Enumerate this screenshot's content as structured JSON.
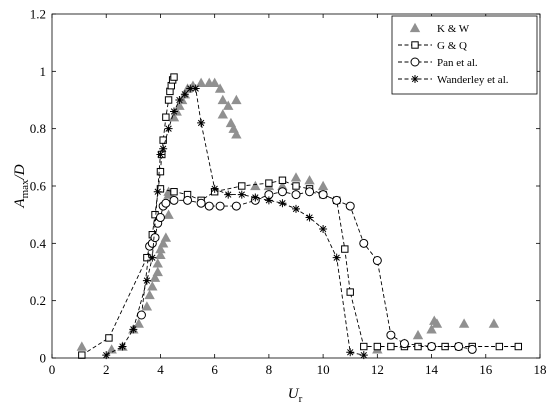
{
  "chart_data": {
    "type": "scatter",
    "xlabel": {
      "main": "U",
      "sub": "r"
    },
    "ylabel": {
      "main": "A",
      "sub": "max",
      "suffix": "/D"
    },
    "xlim": [
      0,
      18
    ],
    "ylim": [
      0,
      1.2
    ],
    "xticks": [
      0,
      2,
      4,
      6,
      8,
      10,
      12,
      14,
      16,
      18
    ],
    "yticks": [
      0,
      0.2,
      0.4,
      0.6,
      0.8,
      1,
      1.2
    ],
    "xtick_labels": [
      "0",
      "2",
      "4",
      "6",
      "8",
      "10",
      "12",
      "14",
      "16",
      "18"
    ],
    "ytick_labels": [
      "0",
      "0.2",
      "0.4",
      "0.6",
      "0.8",
      "1",
      "1.2"
    ],
    "grid": false,
    "legend_position": "top-right",
    "series": [
      {
        "name": "K & W",
        "marker": "triangle",
        "line": "none",
        "color": "#909090",
        "points": [
          [
            1.1,
            0.04
          ],
          [
            2.2,
            0.03
          ],
          [
            2.6,
            0.04
          ],
          [
            3.0,
            0.1
          ],
          [
            3.2,
            0.12
          ],
          [
            3.5,
            0.18
          ],
          [
            3.6,
            0.22
          ],
          [
            3.7,
            0.25
          ],
          [
            3.8,
            0.28
          ],
          [
            3.9,
            0.3
          ],
          [
            3.9,
            0.33
          ],
          [
            4.0,
            0.36
          ],
          [
            4.0,
            0.38
          ],
          [
            4.1,
            0.4
          ],
          [
            4.2,
            0.42
          ],
          [
            4.3,
            0.5
          ],
          [
            4.3,
            0.57
          ],
          [
            4.3,
            0.58
          ],
          [
            4.5,
            0.84
          ],
          [
            4.6,
            0.86
          ],
          [
            4.7,
            0.88
          ],
          [
            4.8,
            0.9
          ],
          [
            4.9,
            0.92
          ],
          [
            5.0,
            0.94
          ],
          [
            5.2,
            0.95
          ],
          [
            5.5,
            0.96
          ],
          [
            5.8,
            0.96
          ],
          [
            6.0,
            0.96
          ],
          [
            6.2,
            0.94
          ],
          [
            6.3,
            0.9
          ],
          [
            6.3,
            0.85
          ],
          [
            6.5,
            0.88
          ],
          [
            6.6,
            0.82
          ],
          [
            6.7,
            0.8
          ],
          [
            6.8,
            0.9
          ],
          [
            6.8,
            0.78
          ],
          [
            7.5,
            0.6
          ],
          [
            8.0,
            0.6
          ],
          [
            8.5,
            0.6
          ],
          [
            9.0,
            0.63
          ],
          [
            9.5,
            0.62
          ],
          [
            10.0,
            0.6
          ],
          [
            12.0,
            0.03
          ],
          [
            13.0,
            0.05
          ],
          [
            13.5,
            0.08
          ],
          [
            14.0,
            0.1
          ],
          [
            14.1,
            0.13
          ],
          [
            14.2,
            0.12
          ],
          [
            15.2,
            0.12
          ],
          [
            16.3,
            0.12
          ]
        ]
      },
      {
        "name": "G & Q",
        "marker": "square",
        "line": "dashed",
        "color": "#000000",
        "segments": [
          [
            [
              1.1,
              0.01
            ],
            [
              2.1,
              0.07
            ],
            [
              3.5,
              0.35
            ],
            [
              3.7,
              0.43
            ],
            [
              3.8,
              0.5
            ],
            [
              4.0,
              0.65
            ],
            [
              4.05,
              0.71
            ],
            [
              4.1,
              0.76
            ],
            [
              4.2,
              0.84
            ],
            [
              4.3,
              0.9
            ],
            [
              4.35,
              0.93
            ],
            [
              4.4,
              0.95
            ],
            [
              4.45,
              0.97
            ],
            [
              4.5,
              0.98
            ]
          ],
          [
            [
              4.0,
              0.59
            ],
            [
              4.5,
              0.58
            ],
            [
              5.0,
              0.57
            ],
            [
              5.5,
              0.55
            ],
            [
              6.0,
              0.58
            ],
            [
              7.0,
              0.6
            ],
            [
              8.0,
              0.61
            ],
            [
              8.5,
              0.62
            ],
            [
              9.0,
              0.6
            ],
            [
              9.5,
              0.59
            ],
            [
              10.0,
              0.57
            ],
            [
              10.5,
              0.55
            ],
            [
              10.8,
              0.38
            ],
            [
              11.0,
              0.23
            ],
            [
              11.5,
              0.04
            ],
            [
              12.0,
              0.04
            ],
            [
              12.5,
              0.04
            ],
            [
              13.0,
              0.04
            ],
            [
              13.5,
              0.04
            ],
            [
              14.0,
              0.04
            ],
            [
              14.5,
              0.04
            ],
            [
              15.0,
              0.04
            ],
            [
              15.5,
              0.04
            ],
            [
              16.5,
              0.04
            ],
            [
              17.2,
              0.04
            ]
          ]
        ]
      },
      {
        "name": "Pan et al.",
        "marker": "circle",
        "line": "dashed",
        "color": "#000000",
        "segments": [
          [
            [
              3.3,
              0.15
            ],
            [
              3.6,
              0.39
            ],
            [
              3.7,
              0.4
            ],
            [
              3.8,
              0.42
            ],
            [
              3.9,
              0.47
            ],
            [
              4.0,
              0.49
            ],
            [
              4.1,
              0.53
            ],
            [
              4.2,
              0.54
            ],
            [
              4.5,
              0.55
            ],
            [
              5.0,
              0.55
            ],
            [
              5.5,
              0.54
            ],
            [
              5.8,
              0.53
            ],
            [
              6.2,
              0.53
            ],
            [
              6.8,
              0.53
            ],
            [
              7.5,
              0.55
            ],
            [
              8.0,
              0.57
            ],
            [
              8.5,
              0.58
            ],
            [
              9.0,
              0.57
            ],
            [
              9.5,
              0.58
            ],
            [
              10.0,
              0.57
            ],
            [
              10.5,
              0.55
            ],
            [
              11.0,
              0.53
            ],
            [
              11.5,
              0.4
            ],
            [
              12.0,
              0.34
            ],
            [
              12.5,
              0.08
            ],
            [
              13.0,
              0.05
            ],
            [
              14.0,
              0.04
            ],
            [
              15.0,
              0.04
            ],
            [
              15.5,
              0.03
            ]
          ]
        ]
      },
      {
        "name": "Wanderley et al.",
        "marker": "asterisk",
        "line": "dashed",
        "color": "#000000",
        "segments": [
          [
            [
              2.0,
              0.01
            ],
            [
              2.6,
              0.04
            ],
            [
              3.0,
              0.1
            ],
            [
              3.5,
              0.27
            ],
            [
              3.7,
              0.35
            ],
            [
              3.9,
              0.58
            ],
            [
              4.0,
              0.71
            ],
            [
              4.1,
              0.73
            ],
            [
              4.3,
              0.8
            ],
            [
              4.5,
              0.86
            ],
            [
              4.7,
              0.9
            ],
            [
              4.9,
              0.92
            ],
            [
              5.1,
              0.94
            ],
            [
              5.3,
              0.94
            ],
            [
              5.5,
              0.82
            ],
            [
              6.0,
              0.59
            ],
            [
              6.5,
              0.57
            ],
            [
              7.0,
              0.57
            ],
            [
              7.5,
              0.56
            ],
            [
              8.0,
              0.55
            ],
            [
              8.5,
              0.54
            ],
            [
              9.0,
              0.52
            ],
            [
              9.5,
              0.49
            ],
            [
              10.0,
              0.45
            ],
            [
              10.5,
              0.35
            ],
            [
              11.0,
              0.02
            ],
            [
              11.5,
              0.01
            ]
          ]
        ]
      }
    ]
  }
}
